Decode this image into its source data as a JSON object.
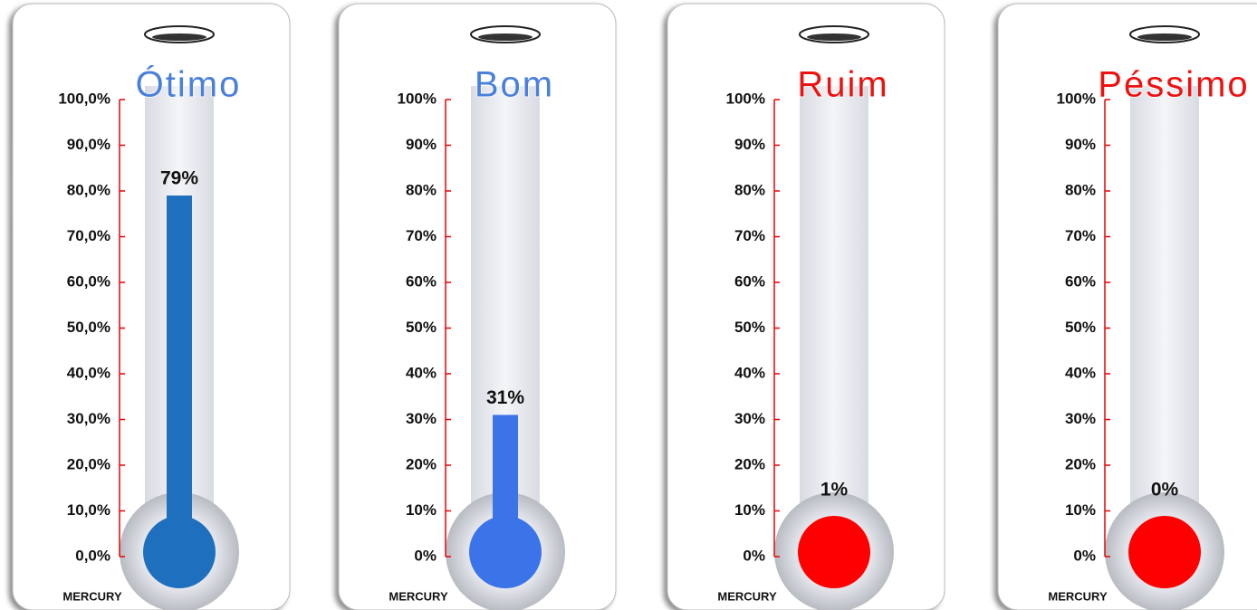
{
  "chart_data": [
    {
      "type": "thermometer",
      "title": "Ótimo",
      "title_color": "#4a80dc",
      "values": [
        79
      ],
      "value_labels": [
        "79%"
      ],
      "color": "#1f6fbf",
      "ylim": [
        0,
        100
      ],
      "yticks": [
        {
          "value": 0,
          "label": "0,0%"
        },
        {
          "value": 10,
          "label": "10,0%"
        },
        {
          "value": 20,
          "label": "20,0%"
        },
        {
          "value": 30,
          "label": "30,0%"
        },
        {
          "value": 40,
          "label": "40,0%"
        },
        {
          "value": 50,
          "label": "50,0%"
        },
        {
          "value": 60,
          "label": "60,0%"
        },
        {
          "value": 70,
          "label": "70,0%"
        },
        {
          "value": 80,
          "label": "80,0%"
        },
        {
          "value": 90,
          "label": "90,0%"
        },
        {
          "value": 100,
          "label": "100,0%"
        }
      ],
      "label": "MERCURY"
    },
    {
      "type": "thermometer",
      "title": "Bom",
      "title_color": "#4a80dc",
      "values": [
        31
      ],
      "value_labels": [
        "31%"
      ],
      "color": "#3b73e8",
      "ylim": [
        0,
        100
      ],
      "yticks": [
        {
          "value": 0,
          "label": "0%"
        },
        {
          "value": 10,
          "label": "10%"
        },
        {
          "value": 20,
          "label": "20%"
        },
        {
          "value": 30,
          "label": "30%"
        },
        {
          "value": 40,
          "label": "40%"
        },
        {
          "value": 50,
          "label": "50%"
        },
        {
          "value": 60,
          "label": "60%"
        },
        {
          "value": 70,
          "label": "70%"
        },
        {
          "value": 80,
          "label": "80%"
        },
        {
          "value": 90,
          "label": "90%"
        },
        {
          "value": 100,
          "label": "100%"
        }
      ],
      "label": "MERCURY"
    },
    {
      "type": "thermometer",
      "title": "Ruim",
      "title_color": "#ee1111",
      "values": [
        1
      ],
      "value_labels": [
        "1%"
      ],
      "color": "#ff0000",
      "ylim": [
        0,
        100
      ],
      "yticks": [
        {
          "value": 0,
          "label": "0%"
        },
        {
          "value": 10,
          "label": "10%"
        },
        {
          "value": 20,
          "label": "20%"
        },
        {
          "value": 30,
          "label": "30%"
        },
        {
          "value": 40,
          "label": "40%"
        },
        {
          "value": 50,
          "label": "50%"
        },
        {
          "value": 60,
          "label": "60%"
        },
        {
          "value": 70,
          "label": "70%"
        },
        {
          "value": 80,
          "label": "80%"
        },
        {
          "value": 90,
          "label": "90%"
        },
        {
          "value": 100,
          "label": "100%"
        }
      ],
      "label": "MERCURY"
    },
    {
      "type": "thermometer",
      "title": "Péssimo",
      "title_color": "#ee1111",
      "values": [
        0
      ],
      "value_labels": [
        "0%"
      ],
      "color": "#ff0000",
      "ylim": [
        0,
        100
      ],
      "yticks": [
        {
          "value": 0,
          "label": "0%"
        },
        {
          "value": 10,
          "label": "10%"
        },
        {
          "value": 20,
          "label": "20%"
        },
        {
          "value": 30,
          "label": "30%"
        },
        {
          "value": 40,
          "label": "40%"
        },
        {
          "value": 50,
          "label": "50%"
        },
        {
          "value": 60,
          "label": "60%"
        },
        {
          "value": 70,
          "label": "70%"
        },
        {
          "value": 80,
          "label": "80%"
        },
        {
          "value": 90,
          "label": "90%"
        },
        {
          "value": 100,
          "label": "100%"
        }
      ],
      "label": "MERCURY"
    }
  ]
}
